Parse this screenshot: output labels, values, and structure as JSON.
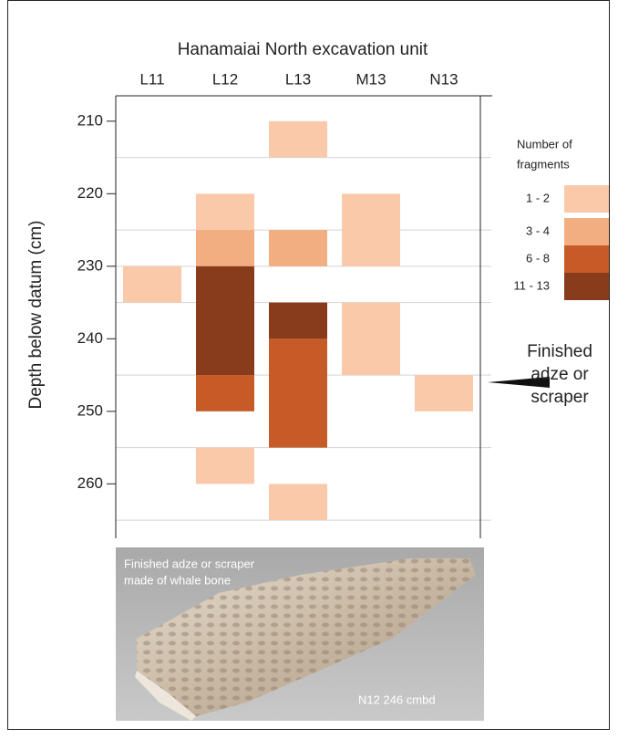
{
  "chart_data": {
    "type": "depth-grid",
    "title": "Hanamaiai North excavation unit",
    "y_label": "Depth below datum (cm)",
    "categories": [
      "L11",
      "L12",
      "L13",
      "M13",
      "N13"
    ],
    "ylim": [
      206.5,
      267.5
    ],
    "yticks": [
      210,
      220,
      230,
      240,
      250,
      260
    ],
    "minor_yticks": [
      215,
      225,
      230,
      235,
      245,
      255,
      265
    ],
    "legend_title": [
      "Number of",
      "fragments"
    ],
    "series": [
      {
        "name": "1 - 2",
        "color": "#f9c9aa",
        "cells": [
          {
            "category": "L11",
            "depth": [
              230,
              235
            ]
          },
          {
            "category": "L12",
            "depth": [
              220,
              225
            ]
          },
          {
            "category": "L12",
            "depth": [
              255,
              260
            ]
          },
          {
            "category": "L13",
            "depth": [
              210,
              215
            ]
          },
          {
            "category": "L13",
            "depth": [
              260,
              265
            ]
          },
          {
            "category": "M13",
            "depth": [
              220,
              230
            ]
          },
          {
            "category": "M13",
            "depth": [
              235,
              245
            ]
          },
          {
            "category": "N13",
            "depth": [
              245,
              250
            ]
          }
        ]
      },
      {
        "name": "3 - 4",
        "color": "#f2ae80",
        "cells": [
          {
            "category": "L12",
            "depth": [
              225,
              230
            ]
          },
          {
            "category": "L13",
            "depth": [
              225,
              230
            ]
          }
        ]
      },
      {
        "name": "6 - 8",
        "color": "#c75b27",
        "cells": [
          {
            "category": "L12",
            "depth": [
              245,
              250
            ]
          },
          {
            "category": "L13",
            "depth": [
              240,
              255
            ]
          }
        ]
      },
      {
        "name": "11 - 13",
        "color": "#893c1b",
        "cells": [
          {
            "category": "L12",
            "depth": [
              230,
              245
            ]
          },
          {
            "category": "L13",
            "depth": [
              235,
              240
            ]
          }
        ]
      }
    ],
    "annotation": {
      "lines": [
        "Finished",
        "adze or",
        "scraper"
      ],
      "depth": 246
    },
    "photo": {
      "caption": [
        "Finished adze or scraper",
        "made of whale bone"
      ],
      "label": "N12 246 cmbd"
    }
  }
}
